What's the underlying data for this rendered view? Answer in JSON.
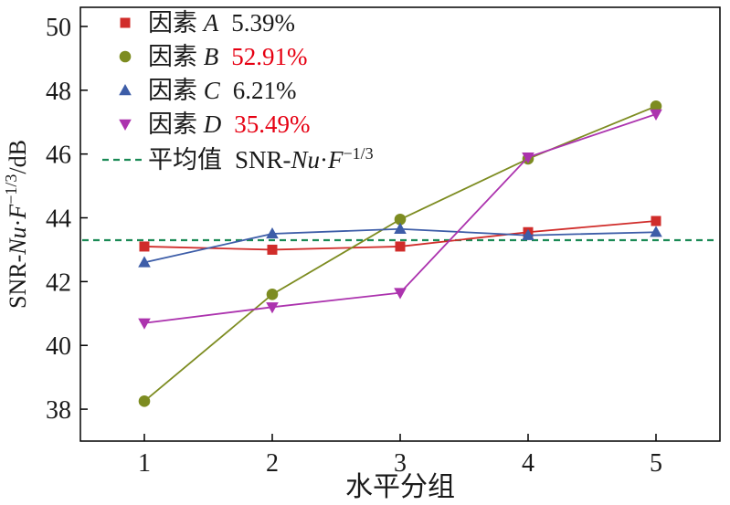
{
  "chart_data": {
    "type": "line",
    "x": [
      1,
      2,
      3,
      4,
      5
    ],
    "xlabel": "水平分组",
    "ylabel_plain": "SNR-Nu·F−1/3/dB",
    "ylabel_parts": [
      {
        "t": "SNR-"
      },
      {
        "t": "Nu",
        "i": true
      },
      {
        "t": "·"
      },
      {
        "t": "F",
        "i": true
      },
      {
        "t": "−1/3",
        "sup": true
      },
      {
        "t": "/dB"
      }
    ],
    "xticks": [
      "1",
      "2",
      "3",
      "4",
      "5"
    ],
    "yticks": [
      38,
      40,
      42,
      44,
      46,
      48,
      50
    ],
    "xlim": [
      0.5,
      5.5
    ],
    "ylim": [
      37.0,
      50.6
    ],
    "grid": false,
    "legend_position": "top-left-inside",
    "series": [
      {
        "id": "a",
        "label": "因素",
        "letter": "A",
        "percent": "5.39%",
        "percent_color": "#1a1a1a",
        "color": "#d02c2a",
        "marker": "square",
        "values": [
          43.1,
          43.0,
          43.1,
          43.55,
          43.9
        ]
      },
      {
        "id": "b",
        "label": "因素",
        "letter": "B",
        "percent": "52.91%",
        "percent_color": "#e60012",
        "color": "#7d8c21",
        "marker": "circle",
        "values": [
          38.25,
          41.6,
          43.95,
          45.85,
          47.5
        ]
      },
      {
        "id": "c",
        "label": "因素",
        "letter": "C",
        "percent": "6.21%",
        "percent_color": "#1a1a1a",
        "color": "#3d5da8",
        "marker": "triangle-up",
        "values": [
          42.6,
          43.5,
          43.65,
          43.45,
          43.55
        ]
      },
      {
        "id": "d",
        "label": "因素",
        "letter": "D",
        "percent": "35.49%",
        "percent_color": "#e60012",
        "color": "#ac33ae",
        "marker": "triangle-down",
        "values": [
          40.7,
          41.2,
          41.65,
          45.9,
          47.25
        ]
      }
    ],
    "mean_line": {
      "label": "平均值",
      "value": 43.3,
      "color": "#1a8a55",
      "style": "dashed",
      "formula_parts": [
        {
          "t": "SNR-"
        },
        {
          "t": "Nu",
          "i": true
        },
        {
          "t": "·"
        },
        {
          "t": "F",
          "i": true
        },
        {
          "t": "−1/3",
          "sup": true
        }
      ]
    }
  }
}
